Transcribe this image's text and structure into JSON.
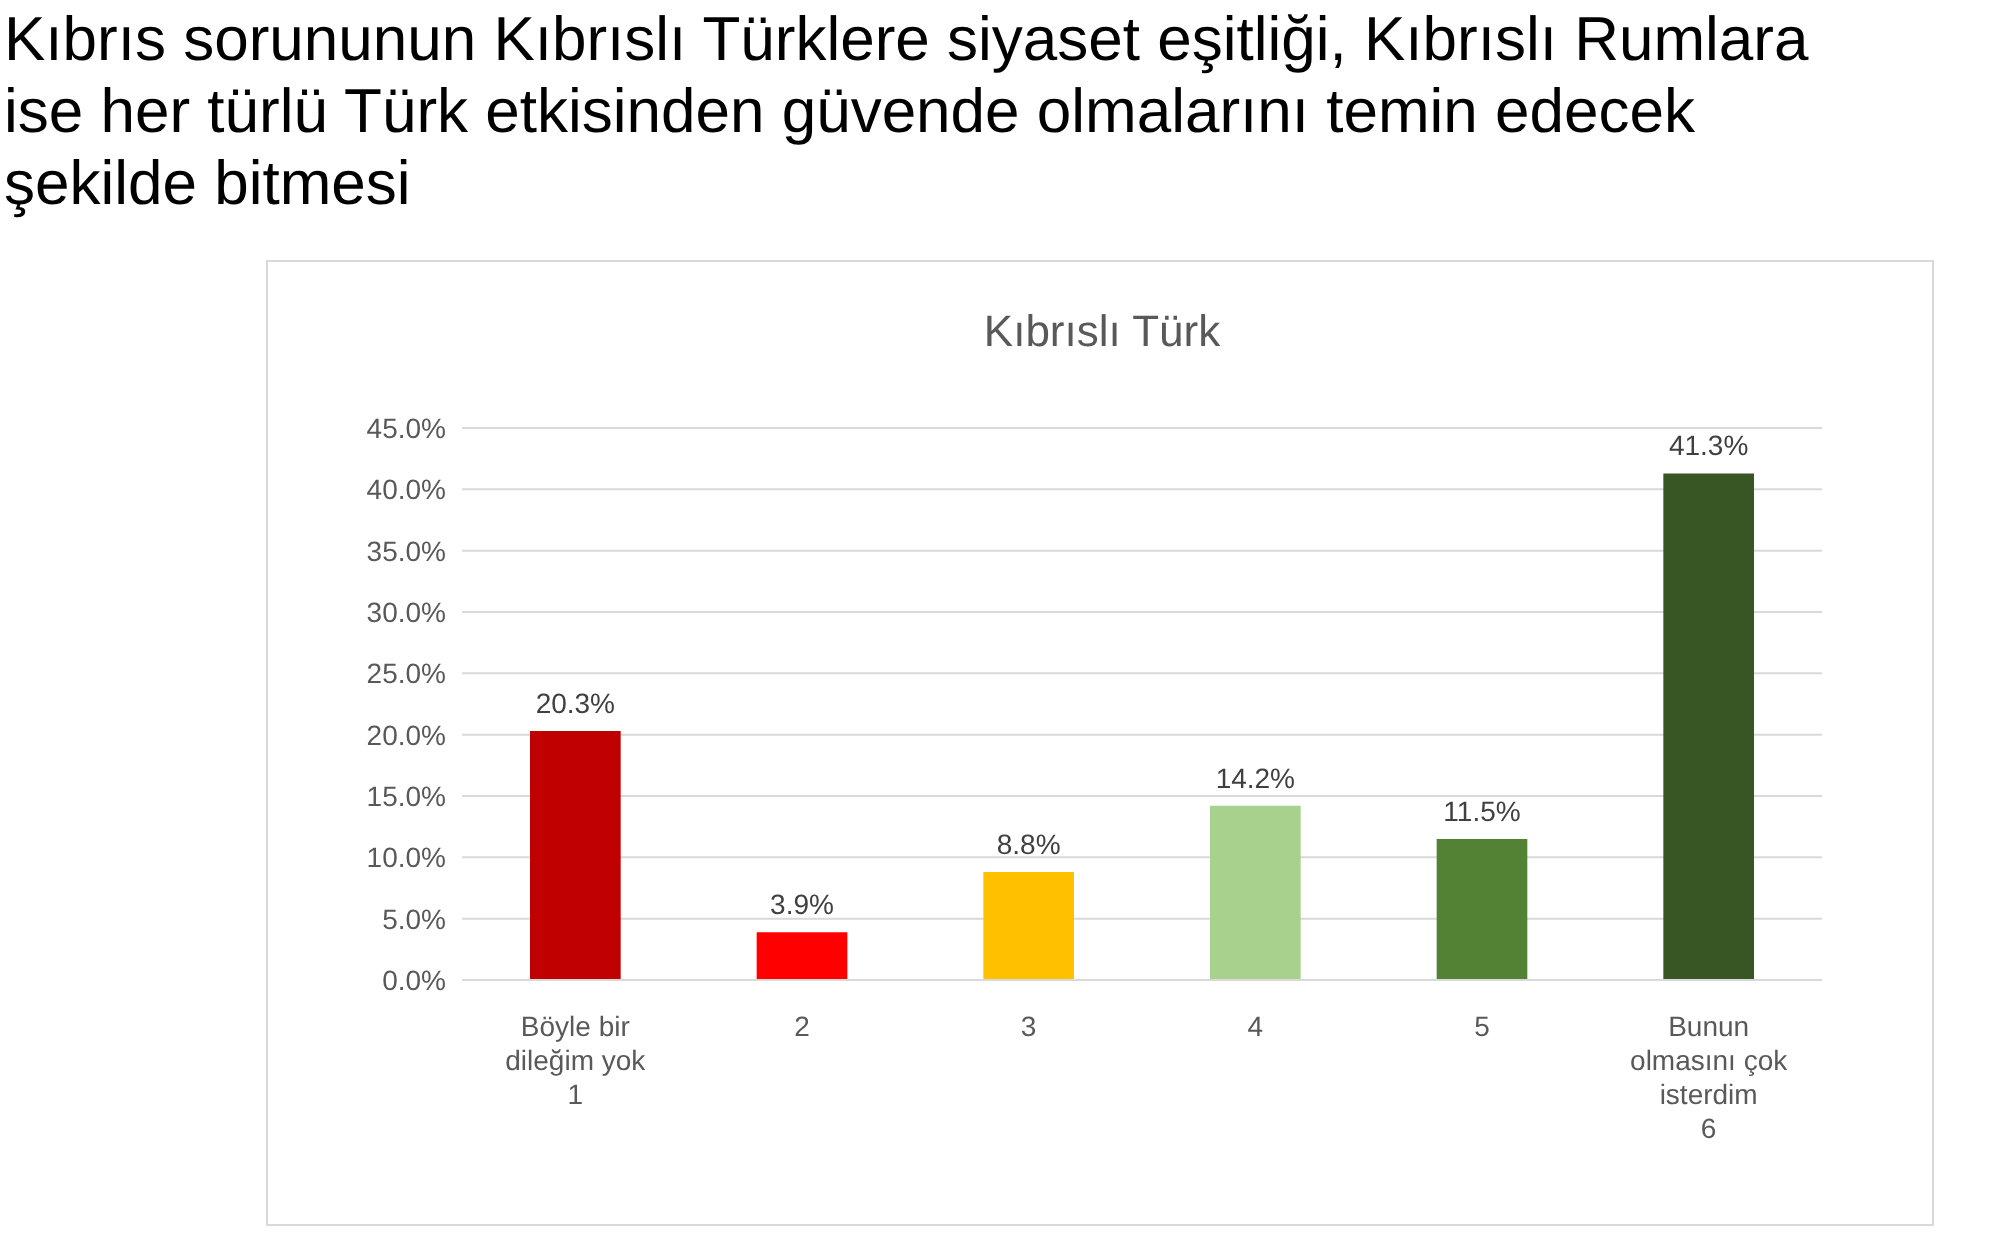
{
  "chart_data": {
    "type": "bar",
    "title": "Kıbrıs sorununun Kıbrıslı Türklere siyaset eşitliği, Kıbrıslı Rumlara ise her türlü Türk etkisinden güvende olmalarını temin edecek şekilde bitmesi",
    "subtitle": "Kıbrıslı Türk",
    "categories": [
      "Böyle bir\ndileğim yok\n1",
      "2",
      "3",
      "4",
      "5",
      "Bunun\nolmasını çok\nisterdim\n6"
    ],
    "values": [
      20.3,
      3.9,
      8.8,
      14.2,
      11.5,
      41.3
    ],
    "colors": [
      "#c00000",
      "#ff0000",
      "#ffc000",
      "#a9d18e",
      "#548235",
      "#375623"
    ],
    "value_labels": [
      "20.3%",
      "3.9%",
      "8.8%",
      "14.2%",
      "11.5%",
      "41.3%"
    ],
    "ylim": [
      0,
      45
    ],
    "yticks": [
      {
        "value": 0,
        "label": "0.0%"
      },
      {
        "value": 5,
        "label": "5.0%"
      },
      {
        "value": 10,
        "label": "10.0%"
      },
      {
        "value": 15,
        "label": "15.0%"
      },
      {
        "value": 20,
        "label": "20.0%"
      },
      {
        "value": 25,
        "label": "25.0%"
      },
      {
        "value": 30,
        "label": "30.0%"
      },
      {
        "value": 35,
        "label": "35.0%"
      },
      {
        "value": 40,
        "label": "40.0%"
      },
      {
        "value": 45,
        "label": "45.0%"
      }
    ],
    "grid": "y"
  }
}
